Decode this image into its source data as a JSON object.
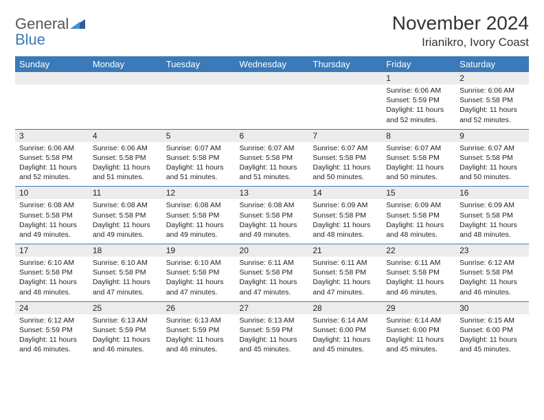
{
  "brand": {
    "word1": "General",
    "word2": "Blue"
  },
  "title": "November 2024",
  "location": "Irianikro, Ivory Coast",
  "colors": {
    "header_bg": "#3b7ab8",
    "header_fg": "#ffffff",
    "daynum_bg": "#ececec",
    "row_border": "#3b7ab8",
    "text": "#222222",
    "logo_gray": "#555555",
    "logo_blue": "#3b7ab8",
    "page_bg": "#ffffff"
  },
  "daynames": [
    "Sunday",
    "Monday",
    "Tuesday",
    "Wednesday",
    "Thursday",
    "Friday",
    "Saturday"
  ],
  "weeks": [
    {
      "nums": [
        "",
        "",
        "",
        "",
        "",
        "1",
        "2"
      ],
      "cells": [
        null,
        null,
        null,
        null,
        null,
        {
          "sunrise": "6:06 AM",
          "sunset": "5:59 PM",
          "daylight": "11 hours and 52 minutes."
        },
        {
          "sunrise": "6:06 AM",
          "sunset": "5:58 PM",
          "daylight": "11 hours and 52 minutes."
        }
      ]
    },
    {
      "nums": [
        "3",
        "4",
        "5",
        "6",
        "7",
        "8",
        "9"
      ],
      "cells": [
        {
          "sunrise": "6:06 AM",
          "sunset": "5:58 PM",
          "daylight": "11 hours and 52 minutes."
        },
        {
          "sunrise": "6:06 AM",
          "sunset": "5:58 PM",
          "daylight": "11 hours and 51 minutes."
        },
        {
          "sunrise": "6:07 AM",
          "sunset": "5:58 PM",
          "daylight": "11 hours and 51 minutes."
        },
        {
          "sunrise": "6:07 AM",
          "sunset": "5:58 PM",
          "daylight": "11 hours and 51 minutes."
        },
        {
          "sunrise": "6:07 AM",
          "sunset": "5:58 PM",
          "daylight": "11 hours and 50 minutes."
        },
        {
          "sunrise": "6:07 AM",
          "sunset": "5:58 PM",
          "daylight": "11 hours and 50 minutes."
        },
        {
          "sunrise": "6:07 AM",
          "sunset": "5:58 PM",
          "daylight": "11 hours and 50 minutes."
        }
      ]
    },
    {
      "nums": [
        "10",
        "11",
        "12",
        "13",
        "14",
        "15",
        "16"
      ],
      "cells": [
        {
          "sunrise": "6:08 AM",
          "sunset": "5:58 PM",
          "daylight": "11 hours and 49 minutes."
        },
        {
          "sunrise": "6:08 AM",
          "sunset": "5:58 PM",
          "daylight": "11 hours and 49 minutes."
        },
        {
          "sunrise": "6:08 AM",
          "sunset": "5:58 PM",
          "daylight": "11 hours and 49 minutes."
        },
        {
          "sunrise": "6:08 AM",
          "sunset": "5:58 PM",
          "daylight": "11 hours and 49 minutes."
        },
        {
          "sunrise": "6:09 AM",
          "sunset": "5:58 PM",
          "daylight": "11 hours and 48 minutes."
        },
        {
          "sunrise": "6:09 AM",
          "sunset": "5:58 PM",
          "daylight": "11 hours and 48 minutes."
        },
        {
          "sunrise": "6:09 AM",
          "sunset": "5:58 PM",
          "daylight": "11 hours and 48 minutes."
        }
      ]
    },
    {
      "nums": [
        "17",
        "18",
        "19",
        "20",
        "21",
        "22",
        "23"
      ],
      "cells": [
        {
          "sunrise": "6:10 AM",
          "sunset": "5:58 PM",
          "daylight": "11 hours and 48 minutes."
        },
        {
          "sunrise": "6:10 AM",
          "sunset": "5:58 PM",
          "daylight": "11 hours and 47 minutes."
        },
        {
          "sunrise": "6:10 AM",
          "sunset": "5:58 PM",
          "daylight": "11 hours and 47 minutes."
        },
        {
          "sunrise": "6:11 AM",
          "sunset": "5:58 PM",
          "daylight": "11 hours and 47 minutes."
        },
        {
          "sunrise": "6:11 AM",
          "sunset": "5:58 PM",
          "daylight": "11 hours and 47 minutes."
        },
        {
          "sunrise": "6:11 AM",
          "sunset": "5:58 PM",
          "daylight": "11 hours and 46 minutes."
        },
        {
          "sunrise": "6:12 AM",
          "sunset": "5:58 PM",
          "daylight": "11 hours and 46 minutes."
        }
      ]
    },
    {
      "nums": [
        "24",
        "25",
        "26",
        "27",
        "28",
        "29",
        "30"
      ],
      "cells": [
        {
          "sunrise": "6:12 AM",
          "sunset": "5:59 PM",
          "daylight": "11 hours and 46 minutes."
        },
        {
          "sunrise": "6:13 AM",
          "sunset": "5:59 PM",
          "daylight": "11 hours and 46 minutes."
        },
        {
          "sunrise": "6:13 AM",
          "sunset": "5:59 PM",
          "daylight": "11 hours and 46 minutes."
        },
        {
          "sunrise": "6:13 AM",
          "sunset": "5:59 PM",
          "daylight": "11 hours and 45 minutes."
        },
        {
          "sunrise": "6:14 AM",
          "sunset": "6:00 PM",
          "daylight": "11 hours and 45 minutes."
        },
        {
          "sunrise": "6:14 AM",
          "sunset": "6:00 PM",
          "daylight": "11 hours and 45 minutes."
        },
        {
          "sunrise": "6:15 AM",
          "sunset": "6:00 PM",
          "daylight": "11 hours and 45 minutes."
        }
      ]
    }
  ],
  "labels": {
    "sunrise": "Sunrise: ",
    "sunset": "Sunset: ",
    "daylight": "Daylight: "
  }
}
